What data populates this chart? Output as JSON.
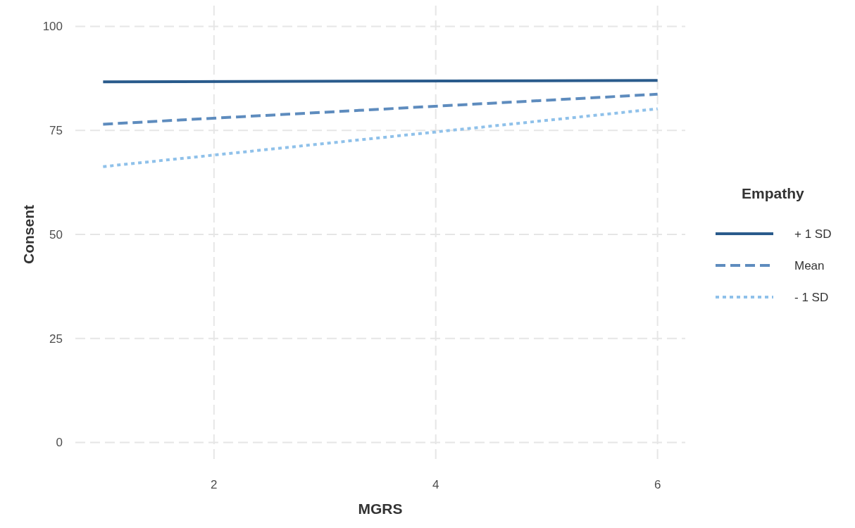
{
  "chart_data": {
    "type": "line",
    "xlabel": "MGRS",
    "ylabel": "Consent",
    "legend_title": "Empathy",
    "legend": "right",
    "x": [
      1,
      6
    ],
    "series": [
      {
        "name": "+ 1 SD",
        "color": "#2a5b8c",
        "values": [
          86.7,
          87.0
        ],
        "line_style": "solid"
      },
      {
        "name": "Mean",
        "color": "#5e8cbe",
        "values": [
          76.5,
          83.7
        ],
        "line_style": "dashed"
      },
      {
        "name": "- 1 SD",
        "color": "#8fc1ea",
        "values": [
          66.3,
          80.2
        ],
        "line_style": "dotted"
      }
    ],
    "xlim": [
      0.75,
      6.25
    ],
    "xticks": [
      2,
      4,
      6
    ],
    "ylim": [
      -5,
      105
    ],
    "yticks": [
      0,
      25,
      50,
      75,
      100
    ],
    "grid": true
  }
}
